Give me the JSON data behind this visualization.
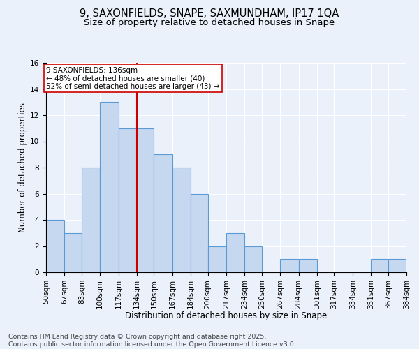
{
  "title": "9, SAXONFIELDS, SNAPE, SAXMUNDHAM, IP17 1QA",
  "subtitle": "Size of property relative to detached houses in Snape",
  "xlabel": "Distribution of detached houses by size in Snape",
  "ylabel": "Number of detached properties",
  "footer_line1": "Contains HM Land Registry data © Crown copyright and database right 2025.",
  "footer_line2": "Contains public sector information licensed under the Open Government Licence v3.0.",
  "bins": [
    50,
    67,
    83,
    100,
    117,
    134,
    150,
    167,
    184,
    200,
    217,
    234,
    250,
    267,
    284,
    301,
    317,
    334,
    351,
    367,
    384
  ],
  "counts": [
    4,
    3,
    8,
    13,
    11,
    11,
    9,
    8,
    6,
    2,
    3,
    2,
    0,
    1,
    1,
    0,
    0,
    0,
    1,
    1
  ],
  "bar_color": "#c5d8f0",
  "bar_edge_color": "#5b9bd5",
  "vline_x": 134,
  "vline_color": "#cc0000",
  "annotation_text": "9 SAXONFIELDS: 136sqm\n← 48% of detached houses are smaller (40)\n52% of semi-detached houses are larger (43) →",
  "annotation_box_color": "white",
  "annotation_box_edge": "#cc0000",
  "ylim": [
    0,
    16
  ],
  "yticks": [
    0,
    2,
    4,
    6,
    8,
    10,
    12,
    14,
    16
  ],
  "tick_labels": [
    "50sqm",
    "67sqm",
    "83sqm",
    "100sqm",
    "117sqm",
    "134sqm",
    "150sqm",
    "167sqm",
    "184sqm",
    "200sqm",
    "217sqm",
    "234sqm",
    "250sqm",
    "267sqm",
    "284sqm",
    "301sqm",
    "317sqm",
    "334sqm",
    "351sqm",
    "367sqm",
    "384sqm"
  ],
  "background_color": "#eaf1fb",
  "grid_color": "white",
  "title_fontsize": 10.5,
  "subtitle_fontsize": 9.5,
  "axis_label_fontsize": 8.5,
  "tick_fontsize": 7.5,
  "annotation_fontsize": 7.5,
  "footer_fontsize": 6.8
}
